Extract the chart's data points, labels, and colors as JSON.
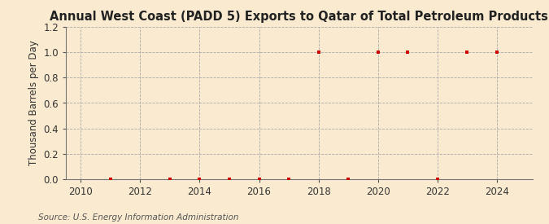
{
  "title": "Annual West Coast (PADD 5) Exports to Qatar of Total Petroleum Products",
  "ylabel": "Thousand Barrels per Day",
  "source": "Source: U.S. Energy Information Administration",
  "background_color": "#faebd0",
  "plot_bg_color": "#faebd0",
  "xlim": [
    2009.5,
    2025.2
  ],
  "ylim": [
    0.0,
    1.2
  ],
  "xticks": [
    2010,
    2012,
    2014,
    2016,
    2018,
    2020,
    2022,
    2024
  ],
  "yticks": [
    0.0,
    0.2,
    0.4,
    0.6,
    0.8,
    1.0,
    1.2
  ],
  "data_years": [
    2011,
    2013,
    2014,
    2015,
    2016,
    2017,
    2018,
    2019,
    2020,
    2021,
    2022,
    2023,
    2024
  ],
  "data_values": [
    0.0,
    0.0,
    0.0,
    0.0,
    0.0,
    0.0,
    1.0,
    0.0,
    1.0,
    1.0,
    0.0,
    1.0,
    1.0
  ],
  "marker_color": "#cc0000",
  "marker_size": 3.5,
  "grid_color": "#aaaaaa",
  "title_fontsize": 10.5,
  "label_fontsize": 8.5,
  "tick_fontsize": 8.5,
  "source_fontsize": 7.5
}
